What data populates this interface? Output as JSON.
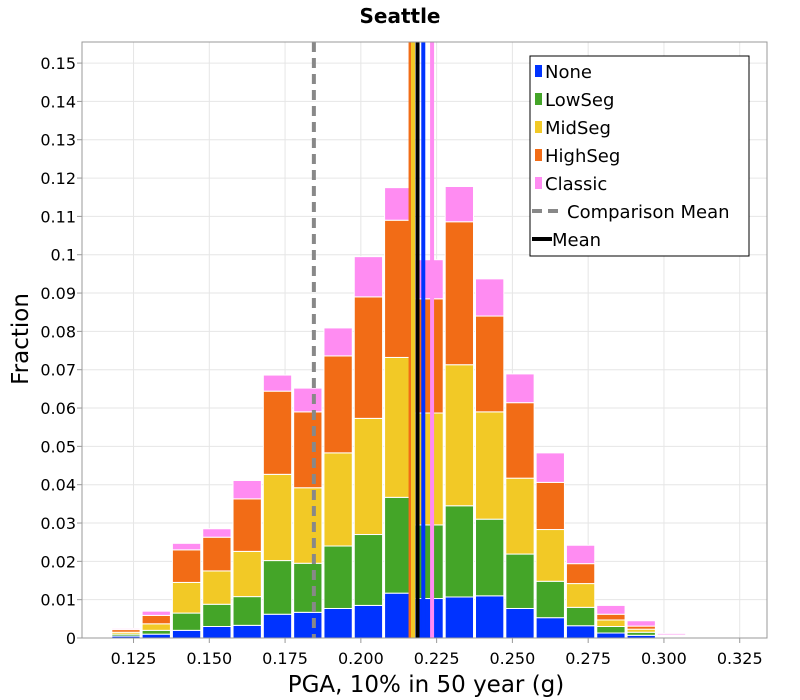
{
  "chart_data": {
    "type": "bar",
    "stacked": true,
    "title": "Seattle",
    "xlabel": "PGA, 10% in 50 year (g)",
    "ylabel": "Fraction",
    "xlim": [
      0.108,
      0.334
    ],
    "ylim": [
      0,
      0.1555
    ],
    "bin_width": 0.01,
    "x_ticks": [
      "0.125",
      "0.150",
      "0.175",
      "0.200",
      "0.225",
      "0.250",
      "0.275",
      "0.300",
      "0.325"
    ],
    "y_ticks": [
      "0",
      "0.01",
      "0.02",
      "0.03",
      "0.04",
      "0.05",
      "0.06",
      "0.07",
      "0.08",
      "0.09",
      "0.1",
      "0.11",
      "0.12",
      "0.13",
      "0.14",
      "0.15"
    ],
    "grid": true,
    "legend_position": "top-right",
    "bin_centers": [
      0.1225,
      0.1325,
      0.1425,
      0.1525,
      0.1625,
      0.1725,
      0.1825,
      0.1925,
      0.2025,
      0.2125,
      0.2225,
      0.2325,
      0.2425,
      0.2525,
      0.2625,
      0.2725,
      0.2825,
      0.2925,
      0.3025,
      0.3125
    ],
    "series": [
      {
        "name": "None",
        "color": "#0033ff",
        "values": [
          0.0005,
          0.001,
          0.002,
          0.003,
          0.0033,
          0.0062,
          0.0067,
          0.0077,
          0.0085,
          0.0117,
          0.0103,
          0.0107,
          0.011,
          0.0077,
          0.0053,
          0.0032,
          0.0013,
          0.0007,
          0.0002,
          0.0001
        ]
      },
      {
        "name": "LowSeg",
        "color": "#44a528",
        "values": [
          0.0005,
          0.001,
          0.0045,
          0.0058,
          0.0075,
          0.014,
          0.0128,
          0.0163,
          0.0185,
          0.025,
          0.0192,
          0.0238,
          0.02,
          0.0142,
          0.0095,
          0.0048,
          0.0017,
          0.0008,
          0.0002,
          0.0001
        ]
      },
      {
        "name": "MidSeg",
        "color": "#f2c926",
        "values": [
          0.0005,
          0.0017,
          0.008,
          0.0087,
          0.0118,
          0.0225,
          0.0197,
          0.0243,
          0.0303,
          0.0365,
          0.0292,
          0.0368,
          0.028,
          0.0198,
          0.0135,
          0.0062,
          0.0017,
          0.0008,
          0.0002,
          0.0001
        ]
      },
      {
        "name": "HighSeg",
        "color": "#f26c16",
        "values": [
          0.0007,
          0.0022,
          0.0085,
          0.0088,
          0.0137,
          0.0217,
          0.0198,
          0.0253,
          0.0317,
          0.0358,
          0.0298,
          0.0373,
          0.025,
          0.0197,
          0.0123,
          0.0052,
          0.0015,
          0.0008,
          0.0002,
          0.0001
        ]
      },
      {
        "name": "Classic",
        "color": "#ff8cf2",
        "values": [
          0.0003,
          0.0011,
          0.0017,
          0.0022,
          0.0048,
          0.0042,
          0.0062,
          0.0073,
          0.0105,
          0.0085,
          0.0102,
          0.0092,
          0.0097,
          0.0075,
          0.0077,
          0.0048,
          0.0023,
          0.0014,
          0.0004,
          0.0002
        ]
      }
    ],
    "mean_lines": [
      {
        "series": "HighSeg",
        "x": 0.2164,
        "color": "#f26c16"
      },
      {
        "series": "MidSeg",
        "x": 0.2172,
        "color": "#f2c926"
      },
      {
        "series": "None",
        "x": 0.2206,
        "color": "#0033ff"
      },
      {
        "series": "Classic",
        "x": 0.2235,
        "color": "#ff8cf2"
      }
    ],
    "comparison_mean": {
      "label": "Comparison Mean",
      "x": 0.1845,
      "color": "#888888",
      "style": "dashed"
    },
    "overall_mean": {
      "label": "Mean",
      "x": 0.2187,
      "color": "#000000"
    }
  }
}
